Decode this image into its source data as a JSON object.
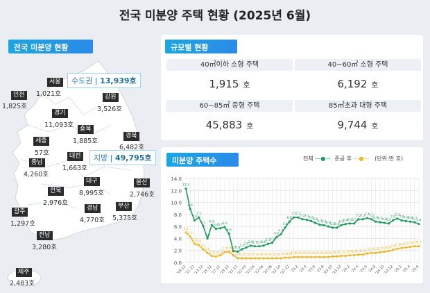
{
  "title": "전국 미분양 주택 현황  (2025년 6월)",
  "map_section": {
    "label": "전국 미분양 현황",
    "capital": {
      "label": "수도권",
      "value": "13,939호"
    },
    "provincial": {
      "label": "지방",
      "value": "49,795호"
    },
    "regions": [
      {
        "name": "서울",
        "value": "1,021호"
      },
      {
        "name": "인천",
        "value": "1,825호"
      },
      {
        "name": "강원",
        "value": "3,526호"
      },
      {
        "name": "경기",
        "value": "11,093호"
      },
      {
        "name": "충북",
        "value": "1,885호"
      },
      {
        "name": "경북",
        "value": "6,482호"
      },
      {
        "name": "세종",
        "value": "57호"
      },
      {
        "name": "대전",
        "value": "1,663호"
      },
      {
        "name": "충남",
        "value": "4,260호"
      },
      {
        "name": "대구",
        "value": "8,995호"
      },
      {
        "name": "울산",
        "value": "2,746호"
      },
      {
        "name": "전북",
        "value": "2,976호"
      },
      {
        "name": "광주",
        "value": "1,297호"
      },
      {
        "name": "경남",
        "value": "4,770호"
      },
      {
        "name": "부산",
        "value": "5,375호"
      },
      {
        "name": "전남",
        "value": "3,280호"
      },
      {
        "name": "제주",
        "value": "2,483호"
      }
    ]
  },
  "size_section": {
    "label": "규모별 현황",
    "unit": "호",
    "cells": [
      {
        "label": "40㎡이하 소형 주택",
        "value": "1,915"
      },
      {
        "label": "40~60㎡ 소형 주택",
        "value": "6,192"
      },
      {
        "label": "60~85㎡ 중형 주택",
        "value": "45,883"
      },
      {
        "label": "85㎡초과 대형 주택",
        "value": "9,744"
      }
    ]
  },
  "chart_section": {
    "label": "미분양 주택수",
    "unit_note": "(단위:만 호)"
  },
  "chart_data": {
    "type": "line",
    "ylim": [
      0,
      14
    ],
    "yticks": [
      "0.0",
      "2.0",
      "4.0",
      "6.0",
      "8.0",
      "10.0",
      "12.0",
      "14.0"
    ],
    "grid": true,
    "legend": "top-right",
    "x_tick_labels": [
      "'09.12",
      "'11.12",
      "'13.12",
      "'15.12",
      "'17.12",
      "'19.12",
      "'21.12",
      "'22.02",
      "'22.04",
      "'22.06",
      "'22.08",
      "'22.10",
      "'22.12",
      "'23.2",
      "'23.4",
      "'23.6",
      "'23.8",
      "'23.10",
      "'23.12",
      "'24.2",
      "'24.4",
      "'24.6",
      "'24.8",
      "'24.10",
      "'24.12",
      "'25.2",
      "'25.4",
      "'25.6"
    ],
    "series": [
      {
        "name": "전체",
        "color": "#1e9a5a",
        "values": [
          12.3,
          8.9,
          7.0,
          7.5,
          6.1,
          4.0,
          6.2,
          5.6,
          5.7,
          5.9,
          4.8,
          1.9,
          1.8,
          2.2,
          2.5,
          2.8,
          2.7,
          2.7,
          2.8,
          3.1,
          3.3,
          4.2,
          4.7,
          5.8,
          6.8,
          7.5,
          7.5,
          7.2,
          7.1,
          6.9,
          6.6,
          6.3,
          6.2,
          6.0,
          5.8,
          5.8,
          6.2,
          6.4,
          6.5,
          6.5,
          7.2,
          7.2,
          7.4,
          7.2,
          6.8,
          6.7,
          6.6,
          6.5,
          7.0,
          7.3,
          7.0,
          6.9,
          6.8,
          6.7,
          6.4
        ]
      },
      {
        "name": "준공 후",
        "color": "#f0b429",
        "values": [
          5.0,
          4.3,
          3.1,
          2.9,
          2.2,
          1.6,
          1.1,
          1.0,
          1.2,
          1.7,
          1.8,
          1.2,
          0.7,
          0.7,
          0.7,
          0.7,
          0.7,
          0.7,
          0.7,
          0.7,
          0.7,
          0.7,
          0.7,
          0.8,
          0.8,
          0.9,
          0.9,
          0.9,
          0.9,
          0.9,
          0.9,
          0.9,
          0.9,
          0.9,
          1.0,
          1.0,
          1.1,
          1.1,
          1.2,
          1.2,
          1.3,
          1.3,
          1.5,
          1.6,
          1.6,
          1.7,
          1.8,
          1.9,
          2.1,
          2.3,
          2.4,
          2.5,
          2.6,
          2.7,
          2.7
        ]
      }
    ]
  }
}
